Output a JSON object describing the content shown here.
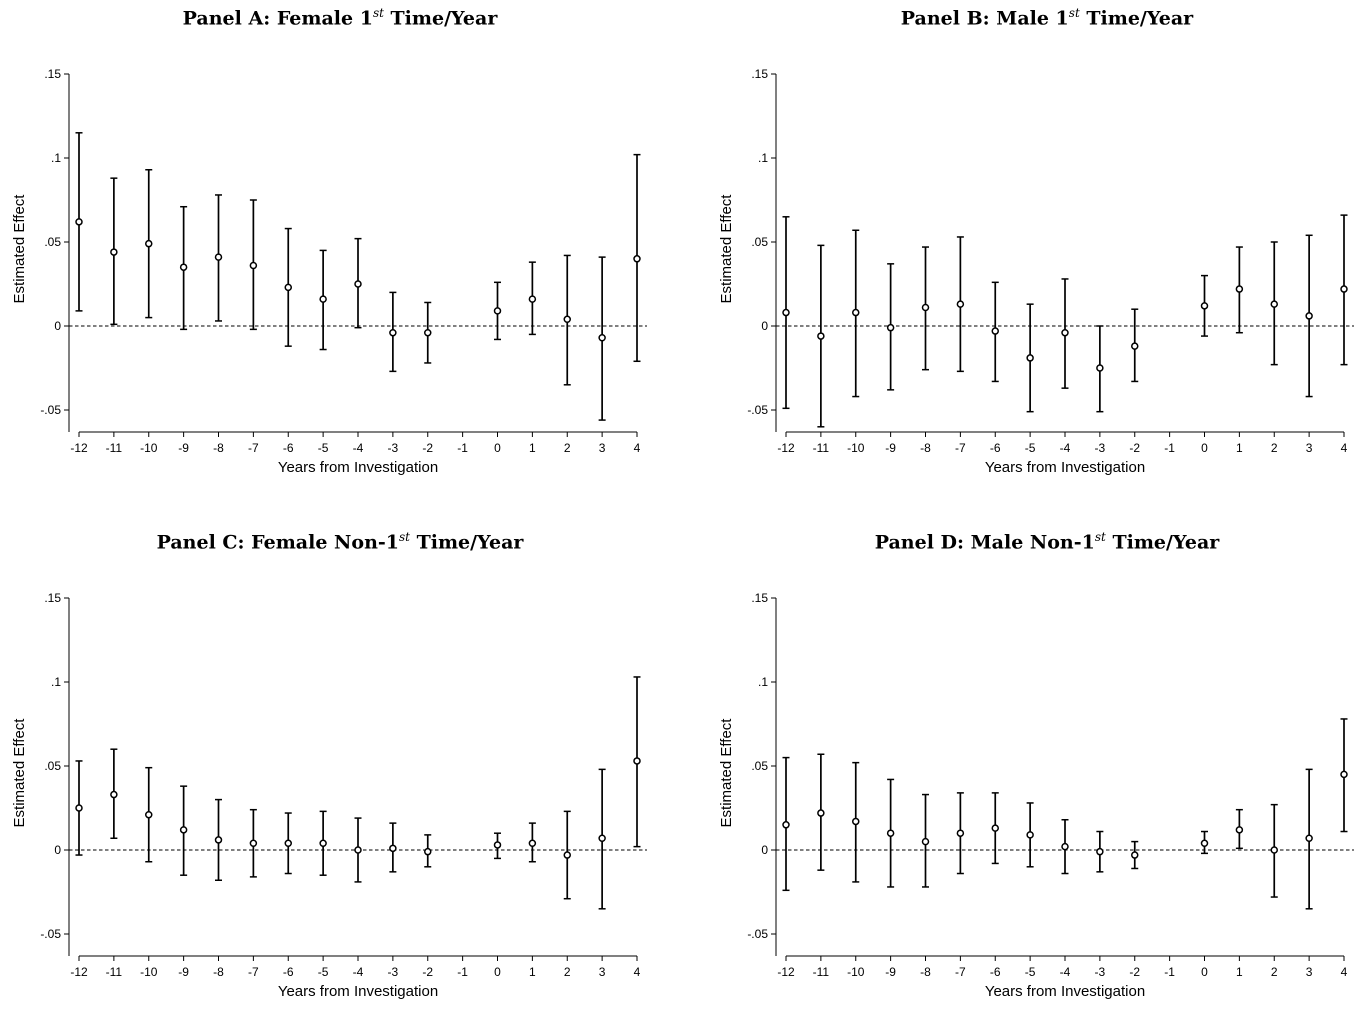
{
  "chart_data": [
    {
      "type": "scatter",
      "title_prefix": "Panel A: Female 1",
      "title_sup": "st",
      "title_suffix": " Time/Year",
      "xlabel": "Years from Investigation",
      "ylabel": "Estimated Effect",
      "xlim": [
        -12,
        4
      ],
      "ylim": [
        -0.05,
        0.15
      ],
      "xticks": [
        "-12",
        "-11",
        "-10",
        "-9",
        "-8",
        "-7",
        "-6",
        "-5",
        "-4",
        "-3",
        "-2",
        "-1",
        "0",
        "1",
        "2",
        "3",
        "4"
      ],
      "yticks": [
        ".15",
        ".1",
        ".05",
        "0",
        "-.05"
      ],
      "reference_line": 0,
      "series": [
        {
          "points": [
            {
              "x": -12,
              "y": 0.062,
              "lo": 0.009,
              "hi": 0.115
            },
            {
              "x": -11,
              "y": 0.044,
              "lo": 0.001,
              "hi": 0.088
            },
            {
              "x": -10,
              "y": 0.049,
              "lo": 0.005,
              "hi": 0.093
            },
            {
              "x": -9,
              "y": 0.035,
              "lo": -0.002,
              "hi": 0.071
            },
            {
              "x": -8,
              "y": 0.041,
              "lo": 0.003,
              "hi": 0.078
            },
            {
              "x": -7,
              "y": 0.036,
              "lo": -0.002,
              "hi": 0.075
            },
            {
              "x": -6,
              "y": 0.023,
              "lo": -0.012,
              "hi": 0.058
            },
            {
              "x": -5,
              "y": 0.016,
              "lo": -0.014,
              "hi": 0.045
            },
            {
              "x": -4,
              "y": 0.025,
              "lo": -0.001,
              "hi": 0.052
            },
            {
              "x": -3,
              "y": -0.004,
              "lo": -0.027,
              "hi": 0.02
            },
            {
              "x": -2,
              "y": -0.004,
              "lo": -0.022,
              "hi": 0.014
            },
            {
              "x": 0,
              "y": 0.009,
              "lo": -0.008,
              "hi": 0.026
            },
            {
              "x": 1,
              "y": 0.016,
              "lo": -0.005,
              "hi": 0.038
            },
            {
              "x": 2,
              "y": 0.004,
              "lo": -0.035,
              "hi": 0.042
            },
            {
              "x": 3,
              "y": -0.007,
              "lo": -0.056,
              "hi": 0.041
            },
            {
              "x": 4,
              "y": 0.04,
              "lo": -0.021,
              "hi": 0.102
            }
          ]
        }
      ]
    },
    {
      "type": "scatter",
      "title_prefix": "Panel B: Male 1",
      "title_sup": "st",
      "title_suffix": " Time/Year",
      "xlabel": "Years from Investigation",
      "ylabel": "Estimated Effect",
      "xlim": [
        -12,
        4
      ],
      "ylim": [
        -0.05,
        0.15
      ],
      "xticks": [
        "-12",
        "-11",
        "-10",
        "-9",
        "-8",
        "-7",
        "-6",
        "-5",
        "-4",
        "-3",
        "-2",
        "-1",
        "0",
        "1",
        "2",
        "3",
        "4"
      ],
      "yticks": [
        ".15",
        ".1",
        ".05",
        "0",
        "-.05"
      ],
      "reference_line": 0,
      "series": [
        {
          "points": [
            {
              "x": -12,
              "y": 0.008,
              "lo": -0.049,
              "hi": 0.065
            },
            {
              "x": -11,
              "y": -0.006,
              "lo": -0.06,
              "hi": 0.048
            },
            {
              "x": -10,
              "y": 0.008,
              "lo": -0.042,
              "hi": 0.057
            },
            {
              "x": -9,
              "y": -0.001,
              "lo": -0.038,
              "hi": 0.037
            },
            {
              "x": -8,
              "y": 0.011,
              "lo": -0.026,
              "hi": 0.047
            },
            {
              "x": -7,
              "y": 0.013,
              "lo": -0.027,
              "hi": 0.053
            },
            {
              "x": -6,
              "y": -0.003,
              "lo": -0.033,
              "hi": 0.026
            },
            {
              "x": -5,
              "y": -0.019,
              "lo": -0.051,
              "hi": 0.013
            },
            {
              "x": -4,
              "y": -0.004,
              "lo": -0.037,
              "hi": 0.028
            },
            {
              "x": -3,
              "y": -0.025,
              "lo": -0.051,
              "hi": 0.0
            },
            {
              "x": -2,
              "y": -0.012,
              "lo": -0.033,
              "hi": 0.01
            },
            {
              "x": 0,
              "y": 0.012,
              "lo": -0.006,
              "hi": 0.03
            },
            {
              "x": 1,
              "y": 0.022,
              "lo": -0.004,
              "hi": 0.047
            },
            {
              "x": 2,
              "y": 0.013,
              "lo": -0.023,
              "hi": 0.05
            },
            {
              "x": 3,
              "y": 0.006,
              "lo": -0.042,
              "hi": 0.054
            },
            {
              "x": 4,
              "y": 0.022,
              "lo": -0.023,
              "hi": 0.066
            }
          ]
        }
      ]
    },
    {
      "type": "scatter",
      "title_prefix": "Panel C: Female Non-1",
      "title_sup": "st",
      "title_suffix": " Time/Year",
      "xlabel": "Years from Investigation",
      "ylabel": "Estimated Effect",
      "xlim": [
        -12,
        4
      ],
      "ylim": [
        -0.05,
        0.15
      ],
      "xticks": [
        "-12",
        "-11",
        "-10",
        "-9",
        "-8",
        "-7",
        "-6",
        "-5",
        "-4",
        "-3",
        "-2",
        "-1",
        "0",
        "1",
        "2",
        "3",
        "4"
      ],
      "yticks": [
        ".15",
        ".1",
        ".05",
        "0",
        "-.05"
      ],
      "reference_line": 0,
      "series": [
        {
          "points": [
            {
              "x": -12,
              "y": 0.025,
              "lo": -0.003,
              "hi": 0.053
            },
            {
              "x": -11,
              "y": 0.033,
              "lo": 0.007,
              "hi": 0.06
            },
            {
              "x": -10,
              "y": 0.021,
              "lo": -0.007,
              "hi": 0.049
            },
            {
              "x": -9,
              "y": 0.012,
              "lo": -0.015,
              "hi": 0.038
            },
            {
              "x": -8,
              "y": 0.006,
              "lo": -0.018,
              "hi": 0.03
            },
            {
              "x": -7,
              "y": 0.004,
              "lo": -0.016,
              "hi": 0.024
            },
            {
              "x": -6,
              "y": 0.004,
              "lo": -0.014,
              "hi": 0.022
            },
            {
              "x": -5,
              "y": 0.004,
              "lo": -0.015,
              "hi": 0.023
            },
            {
              "x": -4,
              "y": 0.0,
              "lo": -0.019,
              "hi": 0.019
            },
            {
              "x": -3,
              "y": 0.001,
              "lo": -0.013,
              "hi": 0.016
            },
            {
              "x": -2,
              "y": -0.001,
              "lo": -0.01,
              "hi": 0.009
            },
            {
              "x": 0,
              "y": 0.003,
              "lo": -0.005,
              "hi": 0.01
            },
            {
              "x": 1,
              "y": 0.004,
              "lo": -0.007,
              "hi": 0.016
            },
            {
              "x": 2,
              "y": -0.003,
              "lo": -0.029,
              "hi": 0.023
            },
            {
              "x": 3,
              "y": 0.007,
              "lo": -0.035,
              "hi": 0.048
            },
            {
              "x": 4,
              "y": 0.053,
              "lo": 0.002,
              "hi": 0.103
            }
          ]
        }
      ]
    },
    {
      "type": "scatter",
      "title_prefix": "Panel D: Male Non-1",
      "title_sup": "st",
      "title_suffix": " Time/Year",
      "xlabel": "Years from Investigation",
      "ylabel": "Estimated Effect",
      "xlim": [
        -12,
        4
      ],
      "ylim": [
        -0.05,
        0.15
      ],
      "xticks": [
        "-12",
        "-11",
        "-10",
        "-9",
        "-8",
        "-7",
        "-6",
        "-5",
        "-4",
        "-3",
        "-2",
        "-1",
        "0",
        "1",
        "2",
        "3",
        "4"
      ],
      "yticks": [
        ".15",
        ".1",
        ".05",
        "0",
        "-.05"
      ],
      "reference_line": 0,
      "series": [
        {
          "points": [
            {
              "x": -12,
              "y": 0.015,
              "lo": -0.024,
              "hi": 0.055
            },
            {
              "x": -11,
              "y": 0.022,
              "lo": -0.012,
              "hi": 0.057
            },
            {
              "x": -10,
              "y": 0.017,
              "lo": -0.019,
              "hi": 0.052
            },
            {
              "x": -9,
              "y": 0.01,
              "lo": -0.022,
              "hi": 0.042
            },
            {
              "x": -8,
              "y": 0.005,
              "lo": -0.022,
              "hi": 0.033
            },
            {
              "x": -7,
              "y": 0.01,
              "lo": -0.014,
              "hi": 0.034
            },
            {
              "x": -6,
              "y": 0.013,
              "lo": -0.008,
              "hi": 0.034
            },
            {
              "x": -5,
              "y": 0.009,
              "lo": -0.01,
              "hi": 0.028
            },
            {
              "x": -4,
              "y": 0.002,
              "lo": -0.014,
              "hi": 0.018
            },
            {
              "x": -3,
              "y": -0.001,
              "lo": -0.013,
              "hi": 0.011
            },
            {
              "x": -2,
              "y": -0.003,
              "lo": -0.011,
              "hi": 0.005
            },
            {
              "x": 0,
              "y": 0.004,
              "lo": -0.002,
              "hi": 0.011
            },
            {
              "x": 1,
              "y": 0.012,
              "lo": 0.001,
              "hi": 0.024
            },
            {
              "x": 2,
              "y": 0.0,
              "lo": -0.028,
              "hi": 0.027
            },
            {
              "x": 3,
              "y": 0.007,
              "lo": -0.035,
              "hi": 0.048
            },
            {
              "x": 4,
              "y": 0.045,
              "lo": 0.011,
              "hi": 0.078
            }
          ]
        }
      ]
    }
  ]
}
